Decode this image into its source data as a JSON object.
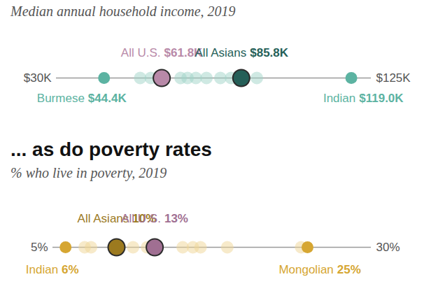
{
  "chart_data": [
    {
      "type": "dot",
      "subtitle": "Median annual household income, 2019",
      "categories": [
        "Burmese",
        null,
        null,
        "All U.S.",
        null,
        null,
        null,
        null,
        null,
        null,
        "All Asians",
        null,
        "Indian"
      ],
      "values": [
        44.4,
        55.3,
        58.5,
        61.8,
        67.5,
        69.6,
        72.1,
        75.3,
        79.5,
        82.7,
        85.8,
        90.5,
        119.0
      ],
      "value_labels": [
        "$44.4K",
        null,
        null,
        "$61.8K",
        null,
        null,
        null,
        null,
        null,
        null,
        "$85.8K",
        null,
        "$119.0K"
      ],
      "colors": [
        "#5cb3a2",
        "#9fd3c7",
        "#9fd3c7",
        "#b889a8",
        "#9fd3c7",
        "#9fd3c7",
        "#9fd3c7",
        "#9fd3c7",
        "#9fd3c7",
        "#9fd3c7",
        "#255f58",
        "#9fd3c7",
        "#5cb3a2"
      ],
      "xlim": [
        30,
        125
      ],
      "xticks": [
        {
          "value": 30,
          "label": "$30K"
        },
        {
          "value": 125,
          "label": "$125K"
        }
      ],
      "data_labels": true
    },
    {
      "type": "dot",
      "title": "... as do poverty rates",
      "subtitle": "% who live in poverty, 2019",
      "categories": [
        "Indian",
        null,
        null,
        "All Asians",
        null,
        null,
        "All U.S.",
        null,
        null,
        null,
        null,
        null,
        "Mongolian"
      ],
      "values": [
        6,
        7.5,
        8,
        10,
        11.3,
        12.4,
        13,
        15.2,
        16,
        16.6,
        18.7,
        24.5,
        25
      ],
      "value_labels": [
        "6%",
        null,
        null,
        "10%",
        null,
        null,
        "13%",
        null,
        null,
        null,
        null,
        null,
        "25%"
      ],
      "colors": [
        "#d6a632",
        "#efd596",
        "#efd596",
        "#9c7a1f",
        "#efd596",
        "#efd596",
        "#a06f92",
        "#efd596",
        "#efd596",
        "#efd596",
        "#efd596",
        "#efd596",
        "#d6a632"
      ],
      "xlim": [
        5,
        30
      ],
      "xticks": [
        {
          "value": 5,
          "label": "5%"
        },
        {
          "value": 30,
          "label": "30%"
        }
      ],
      "data_labels": true
    }
  ]
}
